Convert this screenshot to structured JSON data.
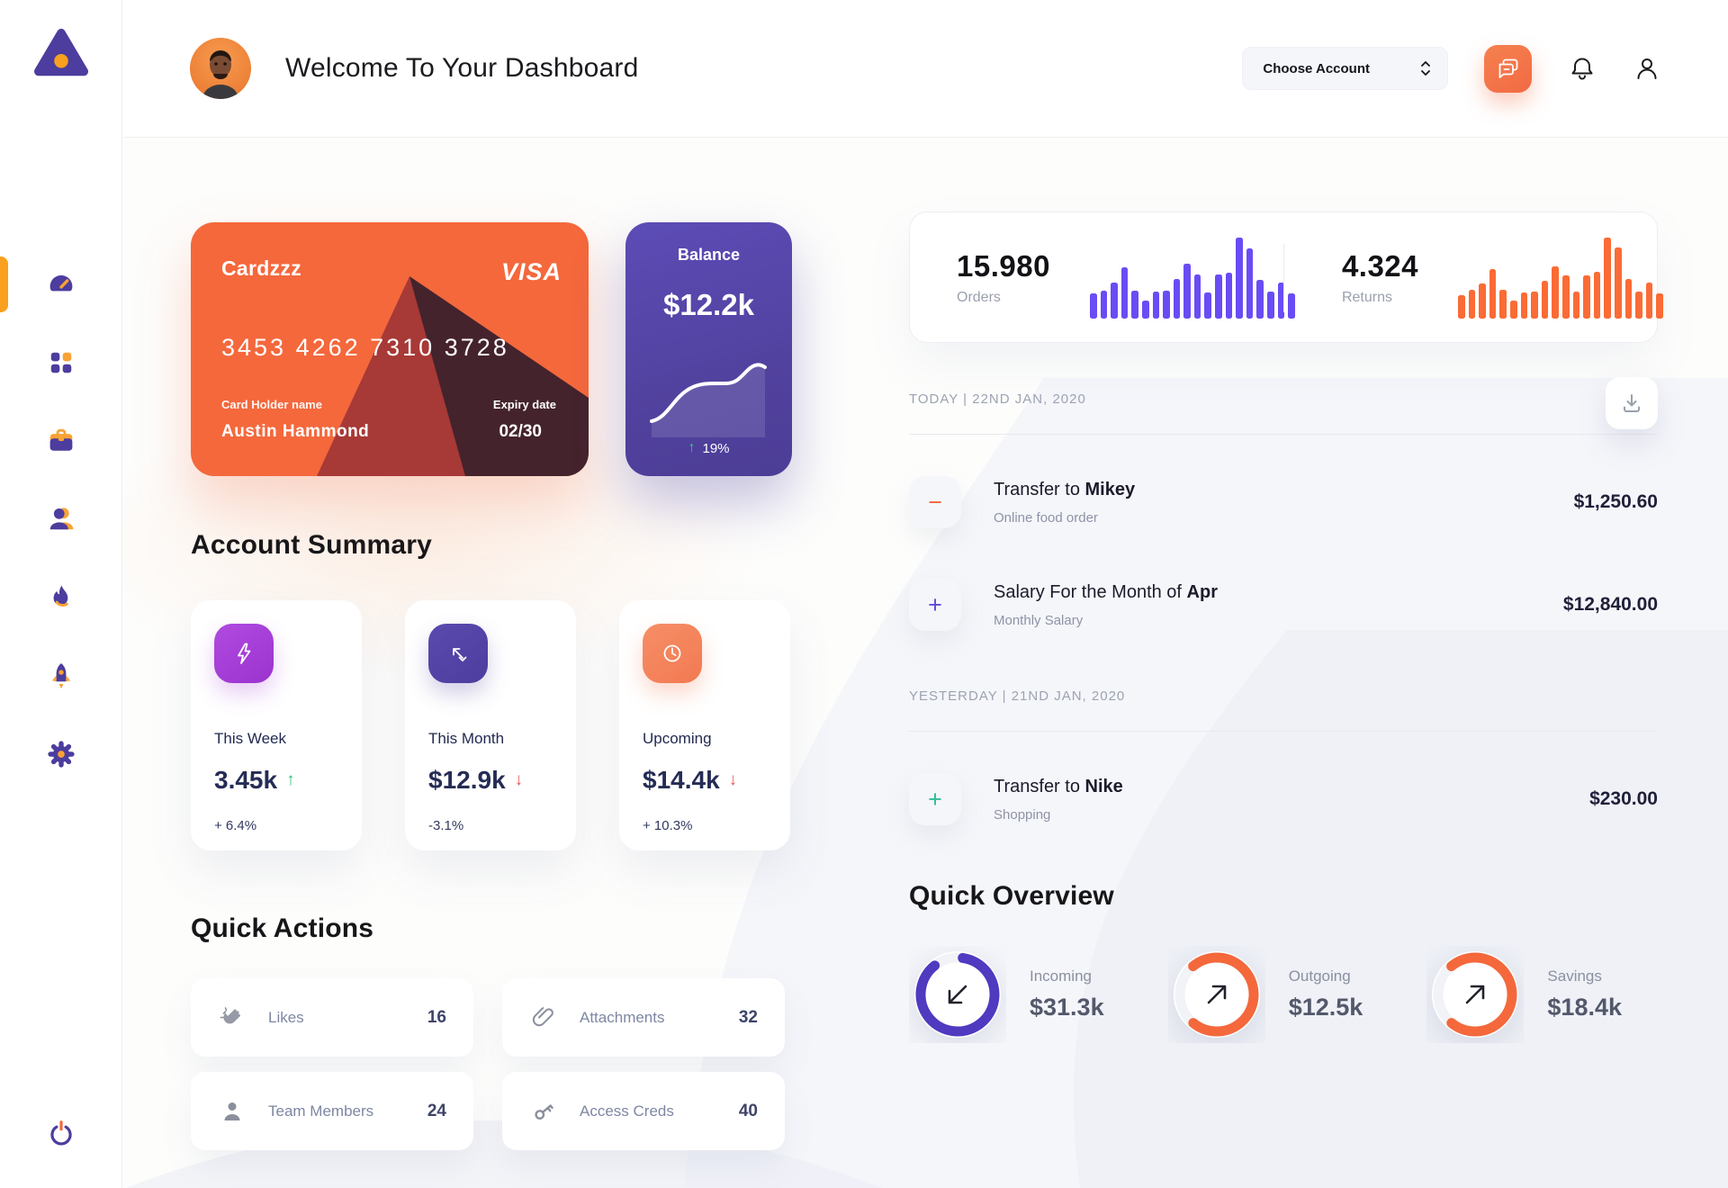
{
  "header": {
    "title": "Welcome To Your Dashboard",
    "account_selector_label": "Choose Account"
  },
  "credit_card": {
    "name": "Cardzzz",
    "brand": "VISA",
    "number": "3453 4262 7310 3728",
    "holder_label": "Card Holder name",
    "holder_name": "Austin Hammond",
    "expiry_label": "Expiry date",
    "expiry": "02/30"
  },
  "balance": {
    "label": "Balance",
    "value": "$12.2k",
    "change_arrow": "↑",
    "change": "19%"
  },
  "stats": {
    "orders": {
      "value": "15.980",
      "label": "Orders",
      "bars": [
        30,
        34,
        44,
        62,
        34,
        22,
        33,
        34,
        48,
        66,
        53,
        32,
        53,
        55,
        98,
        85,
        47,
        33,
        43,
        30
      ]
    },
    "returns": {
      "value": "4.324",
      "label": "Returns",
      "bars": [
        28,
        35,
        42,
        60,
        35,
        22,
        31,
        33,
        46,
        63,
        52,
        33,
        52,
        56,
        98,
        86,
        48,
        33,
        44,
        30
      ]
    }
  },
  "transactions": {
    "groups": [
      {
        "label": "TODAY | 22ND JAN, 2020",
        "rows": [
          {
            "sign": "−",
            "title_prefix": "Transfer to ",
            "title_bold": "Mikey",
            "subtitle": "Online food order",
            "amount": "$1,250.60"
          },
          {
            "sign": "+",
            "title_prefix": "Salary For the Month of ",
            "title_bold": "Apr",
            "subtitle": "Monthly Salary",
            "amount": "$12,840.00"
          }
        ]
      },
      {
        "label": "YESTERDAY | 21ND JAN, 2020",
        "rows": [
          {
            "sign": "+",
            "title_prefix": "Transfer to ",
            "title_bold": "Nike",
            "subtitle": "Shopping",
            "amount": "$230.00"
          }
        ]
      }
    ]
  },
  "quick_overview": {
    "title": "Quick Overview",
    "items": [
      {
        "label": "Incoming",
        "value": "$31.3k",
        "percent": 87,
        "color": "#4F3AC0",
        "arrow": "down-left"
      },
      {
        "label": "Outgoing",
        "value": "$12.5k",
        "percent": 72,
        "color": "#F4683C",
        "arrow": "up-right"
      },
      {
        "label": "Savings",
        "value": "$18.4k",
        "percent": 72,
        "color": "#F4683C",
        "arrow": "up-right"
      }
    ]
  },
  "account_summary": {
    "title": "Account Summary",
    "cards": [
      {
        "period": "This Week",
        "value": "3.45k",
        "arrow": "↑",
        "delta": "+ 6.4%",
        "icon": "bolt-icon"
      },
      {
        "period": "This Month",
        "value": "$12.9k",
        "arrow": "↓",
        "delta": "-3.1%",
        "icon": "trend-icon"
      },
      {
        "period": "Upcoming",
        "value": "$14.4k",
        "arrow": "↓",
        "delta": "+ 10.3%",
        "icon": "clock-icon"
      }
    ]
  },
  "quick_actions": {
    "title": "Quick Actions",
    "items": [
      {
        "label": "Likes",
        "count": "16",
        "icon": "clap-icon"
      },
      {
        "label": "Attachments",
        "count": "32",
        "icon": "paperclip-icon"
      },
      {
        "label": "Team Members",
        "count": "24",
        "icon": "person-icon"
      },
      {
        "label": "Access Creds",
        "count": "40",
        "icon": "key-icon"
      }
    ]
  },
  "colors": {
    "accent_orange": "#F4683C",
    "accent_purple": "#4C3D9E",
    "bright_orange": "#F9A01F",
    "bars_purple": "#6A4CF5",
    "bars_orange": "#FB6B35",
    "green": "#2EBE7C",
    "red": "#E85C5C"
  }
}
